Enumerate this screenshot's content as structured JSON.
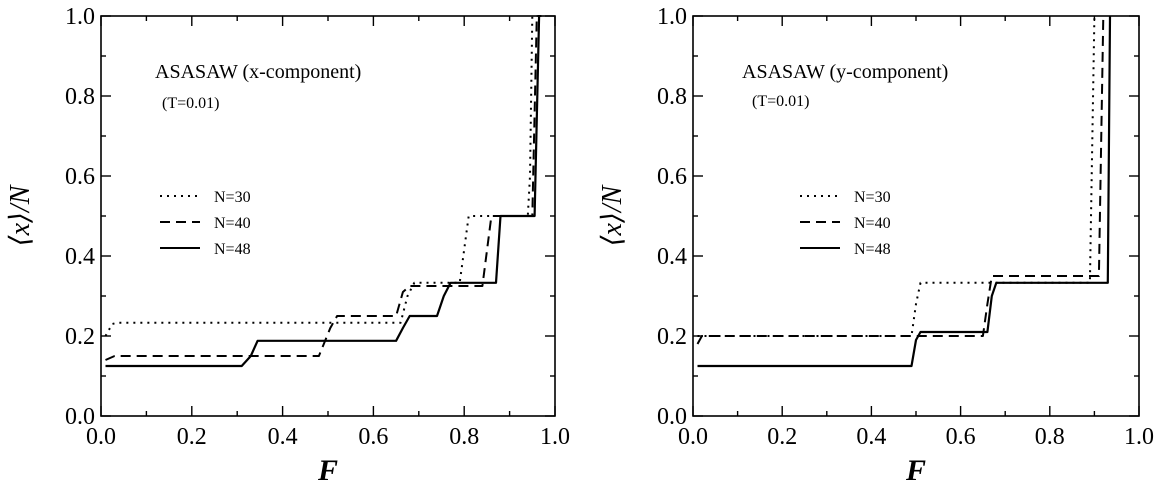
{
  "chart_data": [
    {
      "type": "line",
      "title": "ASASAW (x-component)",
      "subtitle": "(T=0.01)",
      "xlabel": "F",
      "ylabel": "⟨x⟩/N",
      "xlim": [
        0.0,
        1.0
      ],
      "ylim": [
        0.0,
        1.0
      ],
      "xticks": [
        "0.0",
        "0.2",
        "0.4",
        "0.6",
        "0.8",
        "1.0"
      ],
      "yticks": [
        "0.0",
        "0.2",
        "0.4",
        "0.6",
        "0.8",
        "1.0"
      ],
      "grid": false,
      "legend_position": "left-middle",
      "series": [
        {
          "name": "N=30",
          "style": "dotted",
          "x": [
            0.01,
            0.025,
            0.035,
            0.05,
            0.66,
            0.675,
            0.69,
            0.79,
            0.81,
            0.94,
            0.945,
            0.95,
            0.96
          ],
          "y": [
            0.2,
            0.23,
            0.233,
            0.233,
            0.233,
            0.3,
            0.333,
            0.333,
            0.5,
            0.5,
            0.6,
            1.0,
            1.0
          ]
        },
        {
          "name": "N=40",
          "style": "dashed",
          "x": [
            0.01,
            0.03,
            0.48,
            0.505,
            0.52,
            0.65,
            0.665,
            0.68,
            0.84,
            0.86,
            0.95,
            0.96,
            0.97
          ],
          "y": [
            0.14,
            0.15,
            0.15,
            0.22,
            0.25,
            0.25,
            0.31,
            0.325,
            0.325,
            0.5,
            0.5,
            1.0,
            1.0
          ]
        },
        {
          "name": "N=48",
          "style": "solid",
          "x": [
            0.01,
            0.31,
            0.33,
            0.345,
            0.65,
            0.665,
            0.68,
            0.74,
            0.755,
            0.77,
            0.87,
            0.88,
            0.955,
            0.965
          ],
          "y": [
            0.125,
            0.125,
            0.15,
            0.188,
            0.188,
            0.22,
            0.25,
            0.25,
            0.3,
            0.333,
            0.333,
            0.5,
            0.5,
            1.0
          ]
        }
      ]
    },
    {
      "type": "line",
      "title": "ASASAW (y-component)",
      "subtitle": "(T=0.01)",
      "xlabel": "F",
      "ylabel": "⟨x⟩/N",
      "xlim": [
        0.0,
        1.0
      ],
      "ylim": [
        0.0,
        1.0
      ],
      "xticks": [
        "0.0",
        "0.2",
        "0.4",
        "0.6",
        "0.8",
        "1.0"
      ],
      "yticks": [
        "0.0",
        "0.2",
        "0.4",
        "0.6",
        "0.8",
        "1.0"
      ],
      "grid": false,
      "legend_position": "left-middle",
      "series": [
        {
          "name": "N=30",
          "style": "dotted",
          "x": [
            0.01,
            0.02,
            0.49,
            0.5,
            0.51,
            0.89,
            0.9
          ],
          "y": [
            0.2,
            0.2,
            0.2,
            0.28,
            0.333,
            0.333,
            1.0
          ]
        },
        {
          "name": "N=40",
          "style": "dashed",
          "x": [
            0.01,
            0.02,
            0.49,
            0.5,
            0.51,
            0.65,
            0.66,
            0.67,
            0.91,
            0.92
          ],
          "y": [
            0.18,
            0.2,
            0.2,
            0.2,
            0.2,
            0.2,
            0.28,
            0.35,
            0.35,
            1.0
          ]
        },
        {
          "name": "N=48",
          "style": "solid",
          "x": [
            0.01,
            0.49,
            0.5,
            0.51,
            0.66,
            0.67,
            0.68,
            0.93,
            0.935
          ],
          "y": [
            0.125,
            0.125,
            0.19,
            0.21,
            0.21,
            0.3,
            0.333,
            0.333,
            1.0
          ]
        }
      ]
    }
  ]
}
